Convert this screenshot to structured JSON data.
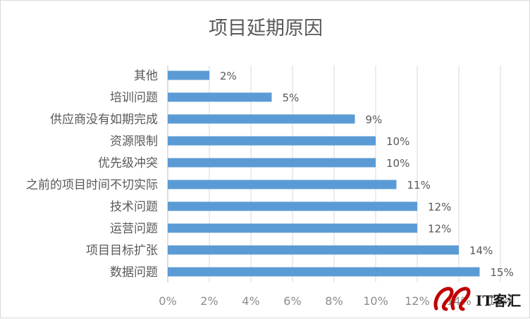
{
  "chart_data": {
    "type": "bar",
    "orientation": "horizontal",
    "title": "项目延期原因",
    "categories": [
      "其他",
      "培训问题",
      "供应商没有如期完成",
      "资源限制",
      "优先级冲突",
      "之前的项目时间不切实际",
      "技术问题",
      "运营问题",
      "项目目标扩张",
      "数据问题"
    ],
    "values": [
      2,
      5,
      9,
      10,
      10,
      11,
      12,
      12,
      14,
      15
    ],
    "data_labels": [
      "2%",
      "5%",
      "9%",
      "10%",
      "10%",
      "11%",
      "12%",
      "12%",
      "14%",
      "15%"
    ],
    "xlim": [
      0,
      16
    ],
    "xticks": [
      "0%",
      "2%",
      "4%",
      "6%",
      "8%",
      "10%",
      "12%",
      "14%",
      "16%"
    ],
    "grid": true,
    "bar_color": "#5b9bd5"
  },
  "watermark": {
    "text": "IT客汇",
    "color": "#c00000"
  }
}
